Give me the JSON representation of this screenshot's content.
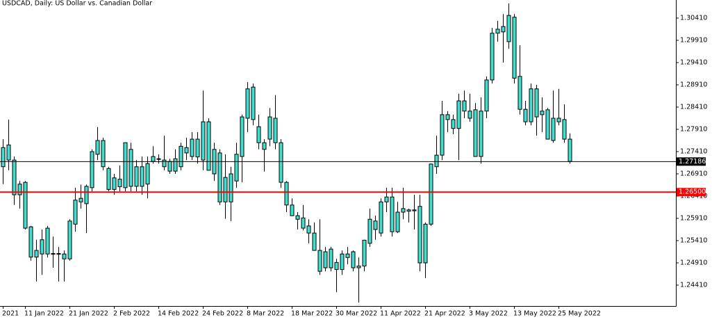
{
  "chart_data": {
    "type": "candlestick",
    "title": "USDCAD, Daily:  US Dollar vs. Canadian Dollar",
    "color": "#40e0d0",
    "edge_color": "#000000",
    "categories": [
      "2021",
      null,
      null,
      null,
      "11 Jan 2022",
      null,
      null,
      null,
      null,
      null,
      null,
      null,
      "21 Jan 2022",
      null,
      null,
      null,
      null,
      null,
      null,
      null,
      "2 Feb 2022",
      null,
      null,
      null,
      null,
      null,
      null,
      null,
      "14 Feb 2022",
      null,
      null,
      null,
      null,
      null,
      null,
      null,
      "24 Feb 2022",
      null,
      null,
      null,
      null,
      null,
      null,
      null,
      "8 Mar 2022",
      null,
      null,
      null,
      null,
      null,
      null,
      null,
      "18 Mar 2022",
      null,
      null,
      null,
      null,
      null,
      null,
      null,
      "30 Mar 2022",
      null,
      null,
      null,
      null,
      null,
      null,
      null,
      "11 Apr 2022",
      null,
      null,
      null,
      null,
      null,
      null,
      null,
      "21 Apr 2022",
      null,
      null,
      null,
      null,
      null,
      null,
      null,
      "3 May 2022",
      null,
      null,
      null,
      null,
      null,
      null,
      null,
      "13 May 2022",
      null,
      null,
      null,
      null,
      null,
      null,
      null,
      "25 May 2022",
      null,
      null
    ],
    "open": [
      1.2707,
      1.2722,
      1.2722,
      1.2644,
      1.2672,
      1.2572,
      1.2504,
      1.2511,
      1.2569,
      1.2511,
      1.2512,
      1.2511,
      1.25,
      1.2578,
      1.2628,
      1.2624,
      1.266,
      1.2735,
      1.2766,
      1.2703,
      1.2656,
      1.2662,
      1.266,
      1.2746,
      1.2663,
      1.2707,
      1.2668,
      1.273,
      1.2725,
      1.2722,
      1.2719,
      1.2697,
      1.2707,
      1.2738,
      1.273,
      1.2769,
      1.2722,
      1.2808,
      1.2691,
      1.2738,
      1.2628,
      1.2691,
      1.2675,
      1.273,
      1.2816,
      1.2886,
      1.2797,
      1.2761,
      1.2769,
      1.2816,
      1.2761,
      1.2672,
      1.2621,
      1.2597,
      1.2592,
      1.2574,
      1.2558,
      1.2519,
      1.248,
      1.2522,
      1.2492,
      1.2476,
      1.2511,
      1.2516,
      1.248,
      1.2484,
      1.2535,
      1.2566,
      1.2558,
      1.2628,
      1.2639,
      1.2561,
      1.2605,
      1.261,
      1.261,
      1.2618,
      1.2491,
      1.2578,
      1.2707,
      1.2733,
      1.2813,
      1.2813,
      1.2793,
      1.2832,
      1.2816,
      1.2835,
      1.273,
      1.2832,
      1.2902,
      1.3007,
      1.301,
      1.2988,
      1.3043,
      1.291,
      1.2836,
      1.2808,
      1.2882,
      1.2824,
      1.2835,
      1.2766,
      1.2808,
      1.2813,
      1.2769
    ],
    "high": [
      1.2769,
      1.2813,
      1.273,
      1.2675,
      1.2675,
      1.2574,
      1.2543,
      1.2566,
      1.2574,
      1.255,
      1.2527,
      1.2519,
      1.2589,
      1.266,
      1.2667,
      1.2667,
      1.2746,
      1.2796,
      1.2772,
      1.2707,
      1.2691,
      1.271,
      1.2761,
      1.2761,
      1.2722,
      1.273,
      1.273,
      1.2753,
      1.2735,
      1.2777,
      1.2725,
      1.2746,
      1.2761,
      1.2772,
      1.2785,
      1.2785,
      1.2878,
      1.2816,
      1.2761,
      1.2746,
      1.2735,
      1.2707,
      1.2761,
      1.2824,
      1.2897,
      1.2894,
      1.2824,
      1.2769,
      1.2839,
      1.2868,
      1.2769,
      1.2675,
      1.2636,
      1.2605,
      1.2621,
      1.2589,
      1.2582,
      1.2589,
      1.2527,
      1.2527,
      1.25,
      1.2519,
      1.2527,
      1.2519,
      1.2503,
      1.2543,
      1.2613,
      1.2597,
      1.2636,
      1.266,
      1.266,
      1.2628,
      1.266,
      1.2613,
      1.2644,
      1.2644,
      1.2582,
      1.2714,
      1.2777,
      1.2855,
      1.2832,
      1.2824,
      1.2871,
      1.2878,
      1.2871,
      1.285,
      1.2863,
      1.291,
      1.3019,
      1.3035,
      1.305,
      1.3074,
      1.305,
      1.298,
      1.2855,
      1.2894,
      1.2891,
      1.2863,
      1.2839,
      1.2878,
      1.2882,
      1.2847,
      1.2782
    ],
    "low": [
      1.2668,
      1.2699,
      1.2621,
      1.2613,
      1.2566,
      1.2496,
      1.2449,
      1.2464,
      1.2503,
      1.248,
      1.2449,
      1.2449,
      1.2496,
      1.2561,
      1.2613,
      1.2558,
      1.2652,
      1.2722,
      1.2699,
      1.2652,
      1.2644,
      1.2652,
      1.2652,
      1.2652,
      1.2652,
      1.2644,
      1.2636,
      1.2714,
      1.2714,
      1.2699,
      1.2691,
      1.2691,
      1.2699,
      1.2722,
      1.2722,
      1.2714,
      1.2699,
      1.2699,
      1.2675,
      1.2621,
      1.259,
      1.2585,
      1.266,
      1.2672,
      1.2785,
      1.28,
      1.2746,
      1.2696,
      1.2753,
      1.2746,
      1.266,
      1.2605,
      1.2597,
      1.2566,
      1.2564,
      1.2535,
      1.2519,
      1.2464,
      1.2472,
      1.2472,
      1.2425,
      1.2464,
      1.2488,
      1.2472,
      1.2402,
      1.2472,
      1.2527,
      1.2543,
      1.255,
      1.2605,
      1.255,
      1.2558,
      1.2589,
      1.2582,
      1.2566,
      1.2472,
      1.2457,
      1.2574,
      1.2691,
      1.2722,
      1.2785,
      1.278,
      1.2722,
      1.2816,
      1.2808,
      1.273,
      1.2714,
      1.2816,
      1.2894,
      1.2988,
      1.2941,
      1.2972,
      1.2894,
      1.2824,
      1.28,
      1.28,
      1.2777,
      1.2785,
      1.2769,
      1.2761,
      1.28,
      1.2761,
      1.2714
    ],
    "close": [
      1.275,
      1.2756,
      1.2644,
      1.2668,
      1.2569,
      1.2504,
      1.2519,
      1.2543,
      1.2511,
      1.2512,
      1.2511,
      1.25,
      1.2585,
      1.2632,
      1.2636,
      1.2663,
      1.2741,
      1.2766,
      1.2707,
      1.2656,
      1.2682,
      1.2679,
      1.2761,
      1.2663,
      1.2707,
      1.2663,
      1.2714,
      1.2719,
      1.2725,
      1.2707,
      1.2697,
      1.2725,
      1.2753,
      1.275,
      1.2769,
      1.2729,
      1.2808,
      1.2699,
      1.2746,
      1.2628,
      1.2683,
      1.2628,
      1.2735,
      1.2819,
      1.2882,
      1.2813,
      1.2761,
      1.2746,
      1.2819,
      1.2761,
      1.2672,
      1.2621,
      1.2597,
      1.2589,
      1.2569,
      1.2558,
      1.2519,
      1.2472,
      1.2516,
      1.248,
      1.2476,
      1.2511,
      1.2503,
      1.248,
      1.2484,
      1.2542,
      1.2589,
      1.2585,
      1.2628,
      1.2639,
      1.2561,
      1.2605,
      1.2613,
      1.2607,
      1.2608,
      1.2491,
      1.2578,
      1.2713,
      1.2733,
      1.2824,
      1.2824,
      1.2793,
      1.2855,
      1.2855,
      1.2832,
      1.273,
      1.2832,
      1.2902,
      1.3007,
      1.3016,
      1.3022,
      1.3047,
      1.2906,
      1.2836,
      1.2808,
      1.2882,
      1.2819,
      1.2832,
      1.2769,
      1.2816,
      1.2816,
      1.2769,
      1.2719
    ],
    "ylim": [
      1.23941,
      1.30816
    ],
    "yticks": [
      {
        "value": 1.3041,
        "label": "1.30410"
      },
      {
        "value": 1.2991,
        "label": "1.29910"
      },
      {
        "value": 1.2941,
        "label": "1.29410"
      },
      {
        "value": 1.2891,
        "label": "1.28910"
      },
      {
        "value": 1.2841,
        "label": "1.28410"
      },
      {
        "value": 1.2791,
        "label": "1.27910"
      },
      {
        "value": 1.2741,
        "label": "1.27410"
      },
      {
        "value": 1.2691,
        "label": "1.26910"
      },
      {
        "value": 1.2641,
        "label": "1.26410"
      },
      {
        "value": 1.2591,
        "label": "1.25910"
      },
      {
        "value": 1.2541,
        "label": "1.25410"
      },
      {
        "value": 1.2491,
        "label": "1.24910"
      },
      {
        "value": 1.2441,
        "label": "1.24410"
      }
    ],
    "price_line": {
      "value": 1.27186,
      "label": "1.27186",
      "color": "#000000"
    },
    "level_line": {
      "value": 1.265,
      "label": "1.26500",
      "color": "#ff0000"
    },
    "grid": false
  }
}
